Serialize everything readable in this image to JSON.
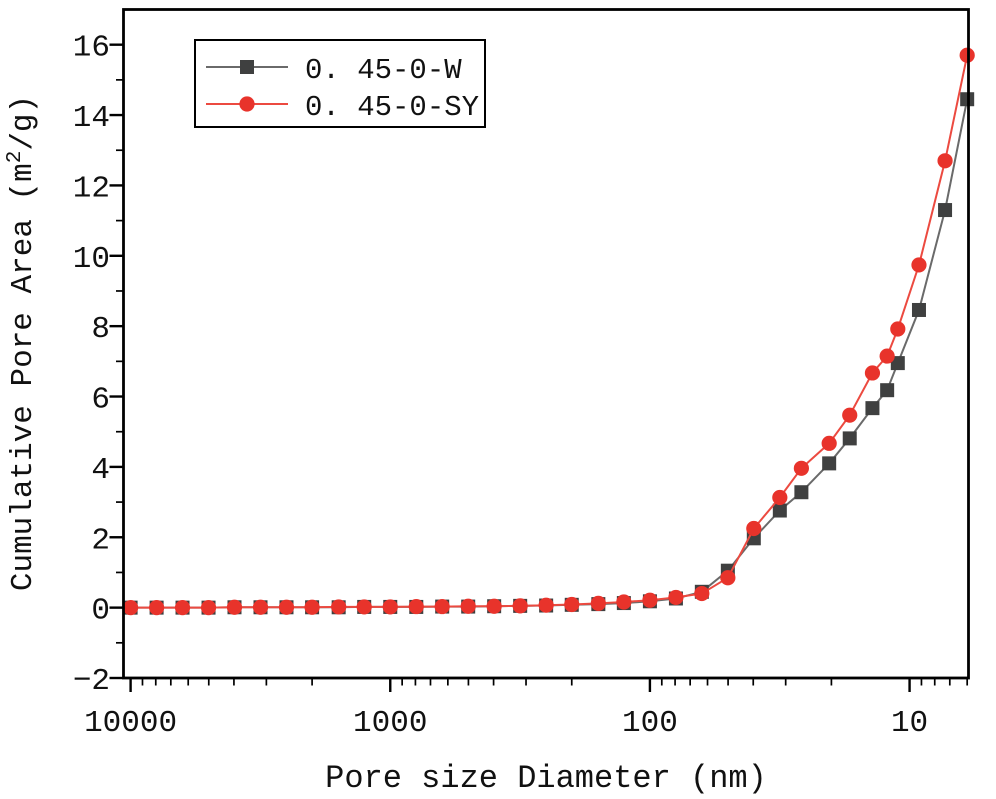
{
  "figure": {
    "background": "#ffffff",
    "frame_color": "#000000"
  },
  "chart_data": {
    "type": "line",
    "title": "",
    "xlabel": "Pore size Diameter (nm)",
    "ylabel": "Cumulative Pore Area (m²/g)",
    "ylabel_parts": {
      "pre": "Cumulative Pore Area (m",
      "sup": "2",
      "post": "/g)"
    },
    "x_scale": "log-reversed",
    "xlim": [
      10650,
      5.93
    ],
    "ylim": [
      -2,
      17
    ],
    "x_major_ticks": [
      10000,
      1000,
      100,
      10
    ],
    "x_major_tick_labels": [
      "10000",
      "1000",
      "100",
      "10"
    ],
    "y_major_ticks": [
      -2,
      0,
      2,
      4,
      6,
      8,
      10,
      12,
      14,
      16
    ],
    "grid": false,
    "legend_position": "top-left-inside",
    "x": [
      10000,
      7940,
      6310,
      5010,
      3980,
      3160,
      2510,
      2000,
      1580,
      1260,
      1000,
      794,
      631,
      501,
      398,
      316,
      251,
      200,
      158,
      126,
      100,
      79.4,
      63.1,
      50.1,
      39.8,
      31.6,
      26.1,
      20.4,
      17.0,
      13.9,
      12.2,
      11.1,
      9.2,
      7.3,
      6.0
    ],
    "series": [
      {
        "name": "0. 45-0-W",
        "marker": "square",
        "marker_color": "#3f4040",
        "line_color": "#6a6a6a",
        "values": [
          0.0,
          0.0,
          0.0,
          0.0,
          0.01,
          0.01,
          0.01,
          0.01,
          0.01,
          0.02,
          0.02,
          0.02,
          0.03,
          0.03,
          0.04,
          0.05,
          0.06,
          0.08,
          0.1,
          0.13,
          0.18,
          0.26,
          0.45,
          1.05,
          1.97,
          2.76,
          3.28,
          4.1,
          4.81,
          5.67,
          6.18,
          6.95,
          8.46,
          11.3,
          14.45
        ]
      },
      {
        "name": "0. 45-0-SY",
        "marker": "circle",
        "marker_color": "#e8332b",
        "line_color": "#ec4a40",
        "values": [
          0.0,
          0.0,
          0.0,
          0.0,
          0.01,
          0.01,
          0.01,
          0.01,
          0.02,
          0.02,
          0.02,
          0.03,
          0.03,
          0.04,
          0.04,
          0.05,
          0.07,
          0.09,
          0.12,
          0.16,
          0.21,
          0.29,
          0.4,
          0.85,
          2.25,
          3.13,
          3.96,
          4.67,
          5.47,
          6.67,
          7.15,
          7.92,
          9.74,
          12.7,
          15.7
        ]
      }
    ]
  }
}
